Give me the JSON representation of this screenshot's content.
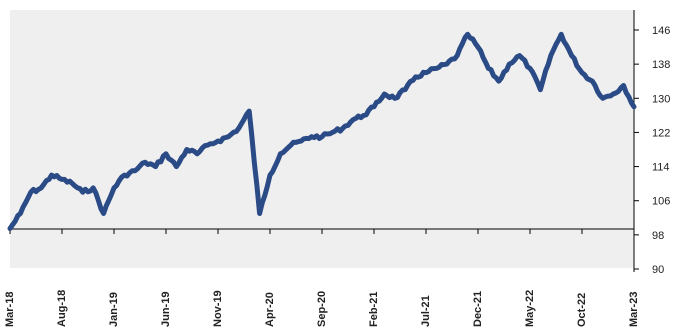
{
  "chart_data": {
    "type": "line",
    "title": "",
    "xlabel": "",
    "ylabel": "",
    "ylim": [
      90,
      150
    ],
    "y_ticks": [
      90,
      98,
      106,
      114,
      122,
      130,
      138,
      146
    ],
    "x_start": "Mar-18",
    "x_end": "Mar-23",
    "x_ticks": [
      "Mar-18",
      "Aug-18",
      "Jan-19",
      "Jun-19",
      "Nov-19",
      "Apr-20",
      "Sep-20",
      "Feb-21",
      "Jul-21",
      "Dec-21",
      "May-22",
      "Oct-22",
      "Mar-23"
    ],
    "grid": false,
    "legend": "none",
    "y_axis_position": "right",
    "colors": {
      "line": "#2b4b86",
      "plot_background": "#efefef",
      "axis": "#000000"
    },
    "series": [
      {
        "name": "",
        "points": [
          [
            "Mar-18",
            99.5
          ],
          [
            "Apr-18",
            103
          ],
          [
            "May-18",
            108
          ],
          [
            "Jun-18",
            109
          ],
          [
            "Jul-18",
            112
          ],
          [
            "Aug-18",
            111
          ],
          [
            "Sep-18",
            110
          ],
          [
            "Oct-18",
            108
          ],
          [
            "Nov-18",
            109
          ],
          [
            "Dec-18",
            103
          ],
          [
            "Jan-19",
            109
          ],
          [
            "Feb-19",
            112
          ],
          [
            "Mar-19",
            113
          ],
          [
            "Apr-19",
            115
          ],
          [
            "May-19",
            114
          ],
          [
            "Jun-19",
            117
          ],
          [
            "Jul-19",
            114
          ],
          [
            "Aug-19",
            118
          ],
          [
            "Sep-19",
            117
          ],
          [
            "Oct-19",
            119
          ],
          [
            "Nov-19",
            120
          ],
          [
            "Dec-19",
            121
          ],
          [
            "Jan-20",
            123
          ],
          [
            "Feb-20",
            127
          ],
          [
            "Mar-20",
            103
          ],
          [
            "Apr-20",
            112
          ],
          [
            "May-20",
            117
          ],
          [
            "Jun-20",
            119
          ],
          [
            "Jul-20",
            120
          ],
          [
            "Aug-20",
            121
          ],
          [
            "Sep-20",
            121
          ],
          [
            "Oct-20",
            122
          ],
          [
            "Nov-20",
            123
          ],
          [
            "Dec-20",
            125
          ],
          [
            "Jan-21",
            126
          ],
          [
            "Feb-21",
            128
          ],
          [
            "Mar-21",
            131
          ],
          [
            "Apr-21",
            130
          ],
          [
            "May-21",
            132
          ],
          [
            "Jun-21",
            135
          ],
          [
            "Jul-21",
            136
          ],
          [
            "Aug-21",
            137
          ],
          [
            "Sep-21",
            138
          ],
          [
            "Oct-21",
            140
          ],
          [
            "Nov-21",
            145
          ],
          [
            "Dec-21",
            142
          ],
          [
            "Jan-22",
            137
          ],
          [
            "Feb-22",
            134
          ],
          [
            "Mar-22",
            138
          ],
          [
            "Apr-22",
            140
          ],
          [
            "May-22",
            137
          ],
          [
            "Jun-22",
            132
          ],
          [
            "Jul-22",
            140
          ],
          [
            "Aug-22",
            145
          ],
          [
            "Sep-22",
            140
          ],
          [
            "Oct-22",
            136
          ],
          [
            "Nov-22",
            134
          ],
          [
            "Dec-22",
            130
          ],
          [
            "Jan-23",
            131
          ],
          [
            "Feb-23",
            133
          ],
          [
            "Mar-23",
            128
          ]
        ]
      }
    ]
  }
}
